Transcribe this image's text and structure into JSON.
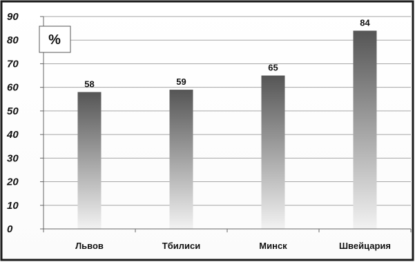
{
  "chart_data": {
    "type": "bar",
    "title": "",
    "xlabel": "",
    "ylabel": "",
    "unit_label": "%",
    "categories": [
      "Львов",
      "Тбилиси",
      "Минск",
      "Швейцария"
    ],
    "values": [
      58,
      59,
      65,
      84
    ],
    "ylim": [
      0,
      90
    ],
    "yticks": [
      0,
      10,
      20,
      30,
      40,
      50,
      60,
      70,
      80,
      90
    ],
    "grid": true,
    "legend": "none",
    "colors": {
      "bar_top": "#555555",
      "bar_bottom": "#f2f2f2",
      "grid": "#a6a6a6",
      "frame": "#1a1a1a"
    }
  }
}
